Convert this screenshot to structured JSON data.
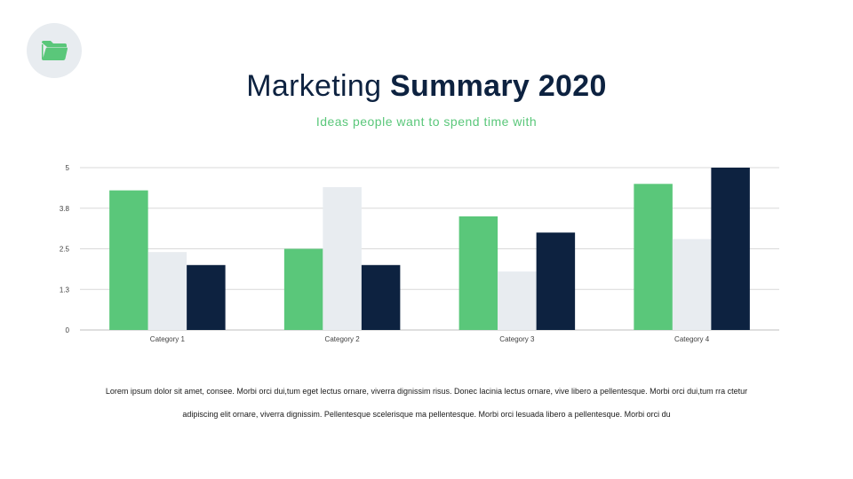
{
  "header": {
    "title_light": "Marketing",
    "title_bold": "Summary 2020",
    "subtitle": "Ideas people want to spend time with"
  },
  "badge": {
    "icon": "folder-icon",
    "color": "#5ac77a",
    "background": "#e8ecf0"
  },
  "body": {
    "line1": "Lorem ipsum dolor sit amet, consee. Morbi orci dui,tum eget lectus ornare, viverra dignissim risus. Donec lacinia  lectus ornare, vive libero a pellentesque. Morbi orci dui,tum rra ctetur",
    "line2": "adipiscing elit ornare, viverra dignissim. Pellentesque scelerisque ma pellentesque. Morbi orci lesuada libero a pellentesque. Morbi orci du"
  },
  "chart_data": {
    "type": "bar",
    "categories": [
      "Category 1",
      "Category 2",
      "Category 3",
      "Category 4"
    ],
    "series": [
      {
        "values": [
          4.3,
          2.5,
          3.5,
          4.5
        ],
        "color": "#5ac77a"
      },
      {
        "values": [
          2.4,
          4.4,
          1.8,
          2.8
        ],
        "color": "#e8ecf0"
      },
      {
        "values": [
          2.0,
          2.0,
          3.0,
          5.0
        ],
        "color": "#0d2240"
      }
    ],
    "ylim": [
      0,
      5
    ],
    "yticks": [
      "0",
      "1.3",
      "2.5",
      "3.8",
      "5"
    ],
    "ytick_values": [
      0,
      1.25,
      2.5,
      3.75,
      5
    ],
    "grid": true,
    "legend": "none"
  }
}
